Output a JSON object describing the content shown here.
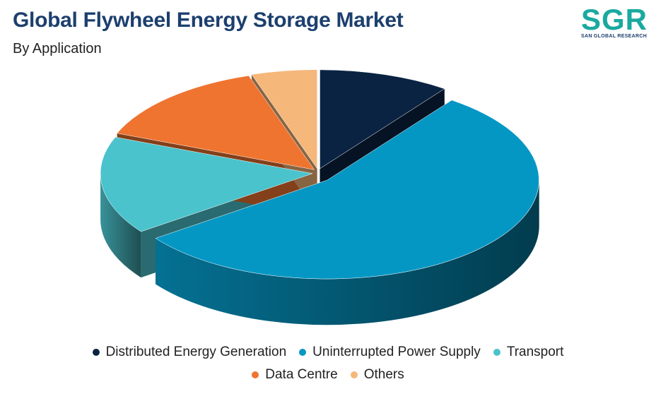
{
  "chart_data": {
    "type": "pie3d",
    "title": "Global Flywheel Energy Storage Market",
    "subtitle": "By Application",
    "categories": [
      "Distributed Energy Generation",
      "Uninterrupted Power Supply",
      "Transport",
      "Data Centre",
      "Others"
    ],
    "values": [
      10,
      55,
      16,
      14,
      5
    ],
    "colors": [
      "#0a2342",
      "#0597c4",
      "#4ac3cc",
      "#ef7430",
      "#f5b77a"
    ]
  },
  "logo": {
    "mark": "SGR",
    "name": "SAN GLOBAL RESEARCH"
  }
}
